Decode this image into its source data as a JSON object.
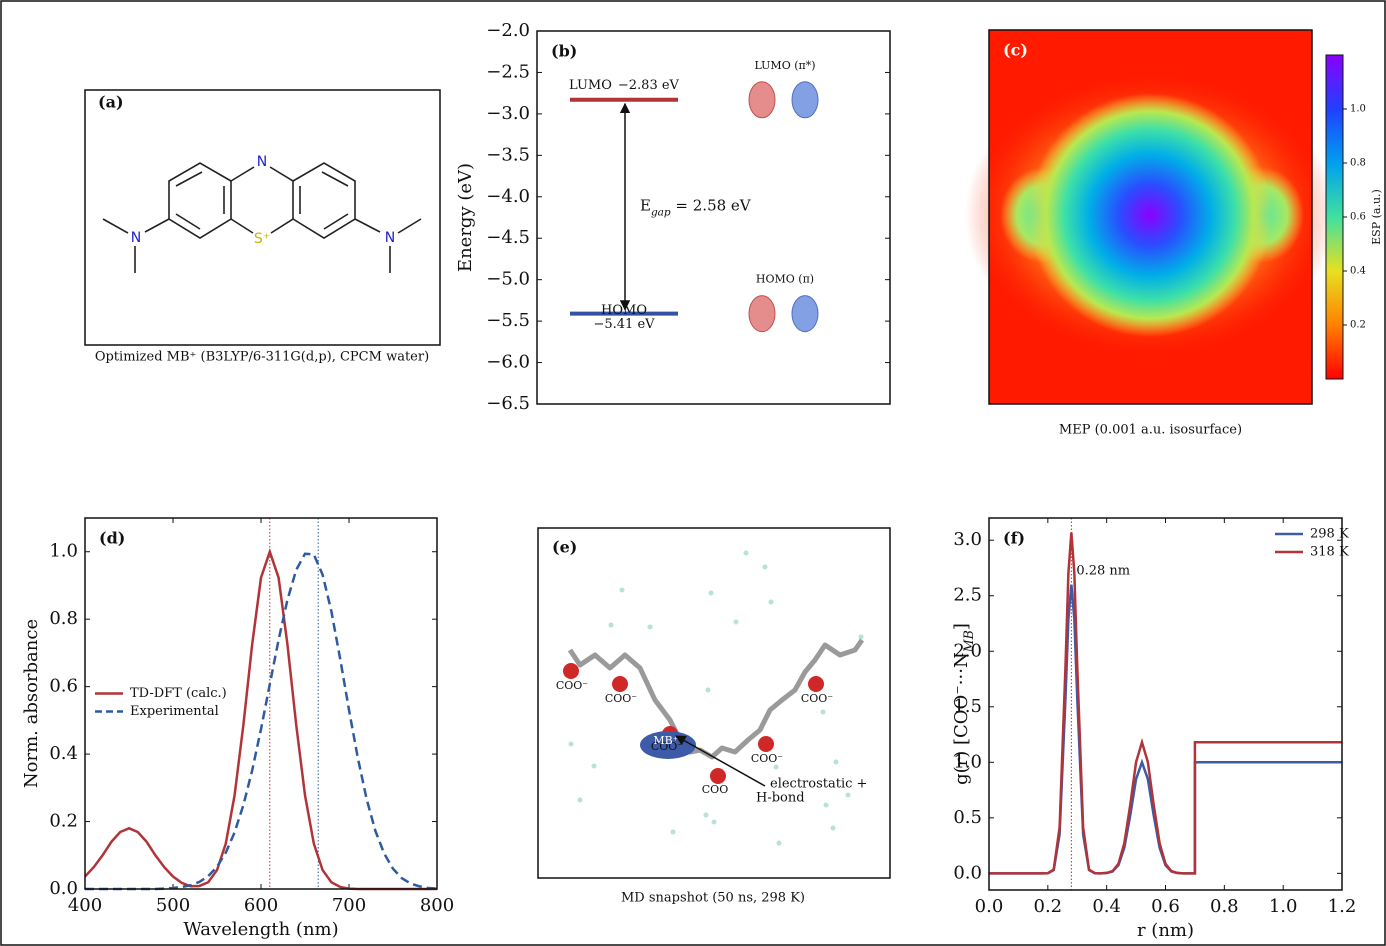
{
  "chart_data": [
    {
      "type": "levels",
      "label": "(b)",
      "ylabel": "Energy (eV)",
      "ylim": [
        -6.5,
        -2.0
      ],
      "yticks": [
        {
          "value": -2.0,
          "label": "−2.0"
        },
        {
          "value": -2.5,
          "label": "−2.5"
        },
        {
          "value": -3.0,
          "label": "−3.0"
        },
        {
          "value": -3.5,
          "label": "−3.5"
        },
        {
          "value": -4.0,
          "label": "−4.0"
        },
        {
          "value": -4.5,
          "label": "−4.5"
        },
        {
          "value": -5.0,
          "label": "−5.0"
        },
        {
          "value": -5.5,
          "label": "−5.5"
        },
        {
          "value": -6.0,
          "label": "−6.0"
        },
        {
          "value": -6.5,
          "label": "−6.5"
        }
      ],
      "levels": [
        {
          "name": "LUMO",
          "value": -2.83,
          "value_label": "−2.83 eV",
          "color": "#b03438",
          "orbital": "LUMO (π*)"
        },
        {
          "name": "HOMO",
          "value": -5.41,
          "value_label": "−5.41 eV",
          "color": "#3352a3",
          "orbital": "HOMO (π)"
        }
      ],
      "gap_label": [
        "E",
        "gap",
        " = 2.58 eV"
      ]
    },
    {
      "type": "heatmap",
      "label": "(c)",
      "caption": "MEP (0.001 a.u. isosurface)",
      "colorbar_label": "ESP (a.u.)",
      "colormap": "rainbow",
      "clim": [
        0,
        1.2
      ],
      "cticks": [
        0.2,
        0.4,
        0.6,
        0.8,
        {
          "value": 1.0,
          "label": "1.0"
        }
      ]
    },
    {
      "type": "line",
      "label": "(d)",
      "xlabel": "Wavelength (nm)",
      "ylabel": "Norm. absorbance",
      "legend": "center left",
      "xlim": [
        400,
        800
      ],
      "xticks": [
        400,
        500,
        600,
        700,
        800
      ],
      "ylim": [
        0,
        1.1
      ],
      "yticks": [
        {
          "value": 0,
          "label": "0.0"
        },
        0.2,
        0.4,
        0.6,
        0.8,
        {
          "value": 1.0,
          "label": "1.0"
        }
      ],
      "x": [
        400,
        410,
        420,
        430,
        440,
        450,
        460,
        470,
        480,
        490,
        500,
        510,
        520,
        530,
        540,
        550,
        560,
        570,
        580,
        590,
        600,
        610,
        620,
        630,
        640,
        650,
        660,
        670,
        680,
        690,
        700,
        710,
        720,
        730,
        740,
        750,
        760,
        770,
        780,
        790,
        800
      ],
      "series": [
        {
          "name": "TD-DFT (calc.)",
          "color": "#b03438",
          "linestyle": "solid",
          "values": [
            0.037,
            0.065,
            0.1,
            0.14,
            0.169,
            0.18,
            0.169,
            0.14,
            0.1,
            0.065,
            0.037,
            0.018,
            0.008,
            0.009,
            0.02,
            0.056,
            0.135,
            0.278,
            0.487,
            0.726,
            0.923,
            1,
            0.923,
            0.726,
            0.487,
            0.278,
            0.135,
            0.056,
            0.02,
            0.006,
            0.001,
            0,
            0,
            0,
            0,
            0,
            0,
            0,
            0,
            0,
            0
          ]
        },
        {
          "name": "Experimental",
          "color": "#2e5aa0",
          "linestyle": "dashed",
          "values": [
            0,
            0,
            0,
            0,
            0,
            0,
            0,
            0,
            0,
            0.001,
            0.003,
            0.006,
            0.011,
            0.021,
            0.038,
            0.066,
            0.108,
            0.168,
            0.249,
            0.352,
            0.474,
            0.607,
            0.739,
            0.857,
            0.946,
            0.994,
            0.992,
            0.932,
            0.823,
            0.682,
            0.531,
            0.389,
            0.267,
            0.172,
            0.105,
            0.06,
            0.032,
            0.016,
            0.008,
            0.003,
            0.001
          ]
        }
      ],
      "vlines": [
        {
          "x": 610,
          "color": "#b03438"
        },
        {
          "x": 665,
          "color": "#2e5aa0"
        }
      ]
    },
    {
      "type": "line",
      "label": "(f)",
      "xlabel": "r (nm)",
      "ylabel_parts": [
        "g(r)  [COO⁻···N",
        "MB",
        "]"
      ],
      "legend": "upper right",
      "xlim": [
        0,
        1.2
      ],
      "xticks": [
        {
          "value": 0,
          "label": "0.0"
        },
        0.2,
        0.4,
        0.6,
        0.8,
        {
          "value": 1.0,
          "label": "1.0"
        },
        1.2
      ],
      "ylim": [
        -0.15,
        3.2
      ],
      "yticks": [
        {
          "value": 0,
          "label": "0.0"
        },
        0.5,
        {
          "value": 1.0,
          "label": "1.0"
        },
        1.5,
        {
          "value": 2.0,
          "label": "2.0"
        },
        2.5,
        {
          "value": 3.0,
          "label": "3.0"
        }
      ],
      "x": [
        0,
        0.1,
        0.18,
        0.2,
        0.22,
        0.24,
        0.26,
        0.27,
        0.28,
        0.29,
        0.3,
        0.32,
        0.34,
        0.36,
        0.38,
        0.4,
        0.42,
        0.44,
        0.46,
        0.48,
        0.5,
        0.52,
        0.54,
        0.56,
        0.58,
        0.6,
        0.62,
        0.64,
        0.66,
        0.7,
        0.7,
        0.8,
        1.0,
        1.2
      ],
      "series": [
        {
          "name": "298 K",
          "color": "#3d5ba8",
          "linestyle": "solid",
          "values": [
            0,
            0,
            0,
            0.001,
            0.029,
            0.351,
            1.578,
            2.293,
            2.6,
            2.293,
            1.578,
            0.351,
            0.029,
            0.001,
            0,
            0.003,
            0.017,
            0.073,
            0.23,
            0.52,
            0.849,
            1,
            0.849,
            0.52,
            0.23,
            0.073,
            0.017,
            0.003,
            0,
            0,
            1,
            1,
            1,
            1
          ]
        },
        {
          "name": "318 K",
          "color": "#b03438",
          "linestyle": "solid",
          "values": [
            0,
            0,
            0,
            0.001,
            0.034,
            0.414,
            1.863,
            2.708,
            3.07,
            2.708,
            1.863,
            0.414,
            0.034,
            0.001,
            0,
            0.004,
            0.02,
            0.086,
            0.271,
            0.614,
            1.002,
            1.18,
            1.002,
            0.614,
            0.271,
            0.086,
            0.02,
            0.004,
            0,
            0,
            1.18,
            1.18,
            1.18,
            1.18
          ]
        }
      ],
      "vlines": [
        {
          "x": 0.28,
          "color": "#b03438",
          "label": "0.28 nm"
        }
      ]
    }
  ],
  "panel_a": {
    "label": "(a)",
    "atoms": [
      "N",
      "S⁺",
      "N",
      "N"
    ],
    "caption": "Optimized MB⁺  (B3LYP/6-311G(d,p), CPCM water)"
  },
  "panel_e": {
    "label": "(e)",
    "carboxylates": [
      "COO⁻",
      "COO⁻",
      "COO⁻",
      "COO⁻",
      "COO⁻",
      "COO"
    ],
    "molecule": "MB⁺",
    "annotation": [
      "electrostatic +",
      "H-bond"
    ],
    "caption": "MD snapshot (50 ns, 298 K)"
  }
}
